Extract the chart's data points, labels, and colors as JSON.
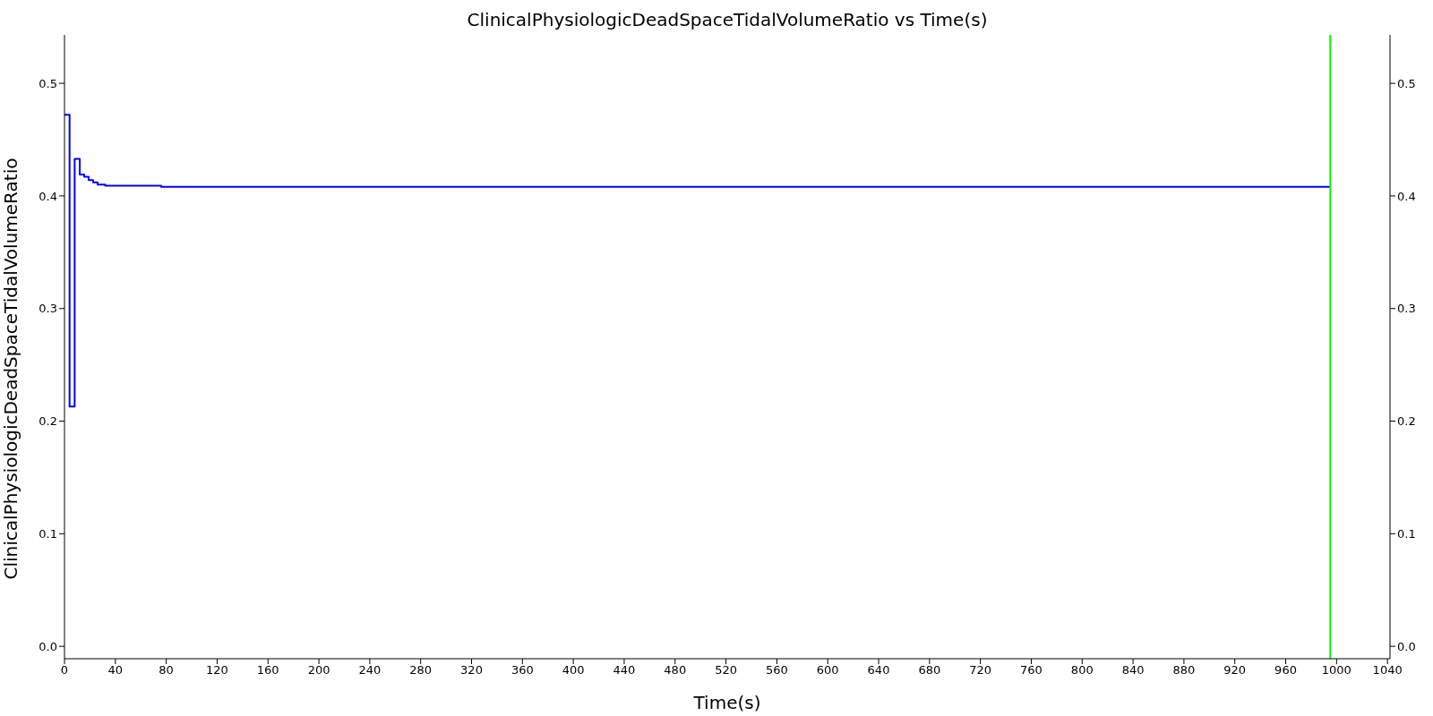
{
  "chart_data": {
    "type": "step",
    "title": "ClinicalPhysiologicDeadSpaceTidalVolumeRatio vs Time(s)",
    "xlabel": "Time(s)",
    "ylabel": "ClinicalPhysiologicDeadSpaceTidalVolumeRatio",
    "x": [
      0,
      4,
      8,
      12,
      15.5,
      19,
      22.5,
      26,
      32,
      76,
      400,
      800,
      995
    ],
    "series": [
      {
        "color": "#0000ff",
        "values": [
          0.472,
          0.213,
          0.433,
          0.419,
          0.417,
          0.414,
          0.412,
          0.41,
          0.409,
          0.408,
          0.408,
          0.408,
          0.408
        ]
      }
    ],
    "xlim": [
      0,
      1042
    ],
    "xticks": [
      0,
      40,
      80,
      120,
      160,
      200,
      240,
      280,
      320,
      360,
      400,
      440,
      480,
      520,
      560,
      600,
      640,
      680,
      720,
      760,
      800,
      840,
      880,
      920,
      960,
      1000,
      1040
    ],
    "ylim": [
      -0.011,
      0.543
    ],
    "yticks": [
      {
        "value": 0,
        "label": "0.0"
      },
      0.1,
      0.2,
      0.3,
      0.4,
      0.5
    ],
    "y2lim": [
      -0.011,
      0.543
    ],
    "y2ticks": [
      {
        "value": 0,
        "label": "0.0"
      },
      0.1,
      0.2,
      0.3,
      0.4,
      0.5
    ],
    "ref_lines": [
      {
        "axis": "x",
        "value": 995,
        "color": "#00ff00"
      }
    ],
    "legend": false,
    "grid": false
  }
}
